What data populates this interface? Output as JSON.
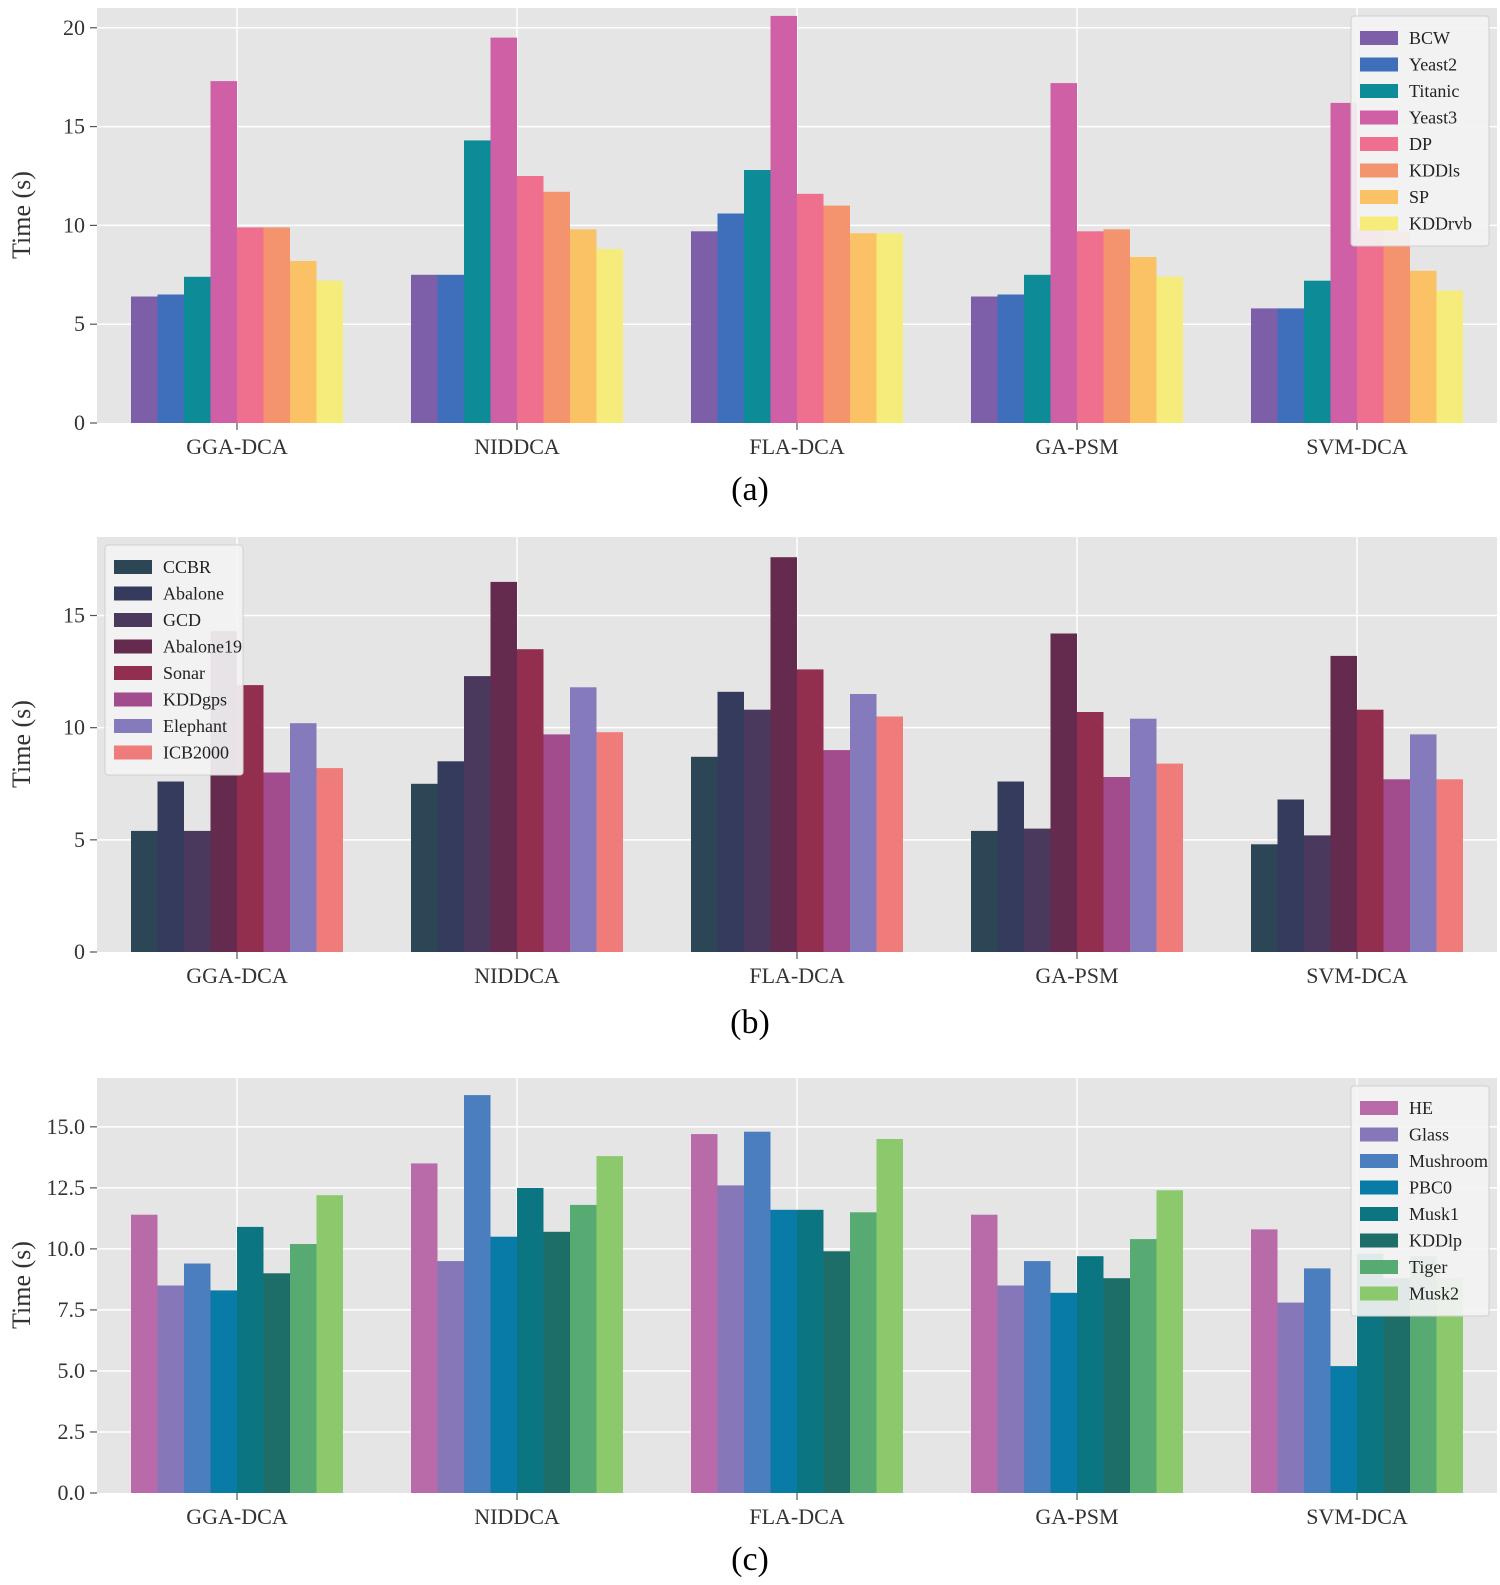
{
  "chart_data": [
    {
      "type": "bar",
      "caption": "(a)",
      "ylabel": "Time (s)",
      "ylim": [
        0,
        21
      ],
      "yticks": [
        0,
        5,
        10,
        15,
        20
      ],
      "ytick_labels": [
        "0",
        "5",
        "10",
        "15",
        "20"
      ],
      "legend_position": "top-right",
      "grid": true,
      "categories": [
        "GGA-DCA",
        "NIDDCA",
        "FLA-DCA",
        "GA-PSM",
        "SVM-DCA"
      ],
      "series": [
        {
          "name": "BCW",
          "color": "#7d5ea8",
          "values": [
            6.4,
            7.5,
            9.7,
            6.4,
            5.8
          ]
        },
        {
          "name": "Yeast2",
          "color": "#3f6fba",
          "values": [
            6.5,
            7.5,
            10.6,
            6.5,
            5.8
          ]
        },
        {
          "name": "Titanic",
          "color": "#0d8c98",
          "values": [
            7.4,
            14.3,
            12.8,
            7.5,
            7.2
          ]
        },
        {
          "name": "Yeast3",
          "color": "#d060a6",
          "values": [
            17.3,
            19.5,
            20.6,
            17.2,
            16.2
          ]
        },
        {
          "name": "DP",
          "color": "#ef6f8f",
          "values": [
            9.9,
            12.5,
            11.6,
            9.7,
            9.8
          ]
        },
        {
          "name": "KDDls",
          "color": "#f4946e",
          "values": [
            9.9,
            11.7,
            11.0,
            9.8,
            9.7
          ]
        },
        {
          "name": "SP",
          "color": "#fbc265",
          "values": [
            8.2,
            9.8,
            9.6,
            8.4,
            7.7
          ]
        },
        {
          "name": "KDDrvb",
          "color": "#f6ec7b",
          "values": [
            7.2,
            8.8,
            9.6,
            7.4,
            6.7
          ]
        }
      ]
    },
    {
      "type": "bar",
      "caption": "(b)",
      "ylabel": "Time (s)",
      "ylim": [
        0,
        18.5
      ],
      "yticks": [
        0,
        5,
        10,
        15
      ],
      "ytick_labels": [
        "0",
        "5",
        "10",
        "15"
      ],
      "legend_position": "top-left",
      "grid": true,
      "categories": [
        "GGA-DCA",
        "NIDDCA",
        "FLA-DCA",
        "GA-PSM",
        "SVM-DCA"
      ],
      "series": [
        {
          "name": "CCBR",
          "color": "#2d4656",
          "values": [
            5.4,
            7.5,
            8.7,
            5.4,
            4.8
          ]
        },
        {
          "name": "Abalone",
          "color": "#353b5d",
          "values": [
            7.6,
            8.5,
            11.6,
            7.6,
            6.8
          ]
        },
        {
          "name": "GCD",
          "color": "#4b385d",
          "values": [
            5.4,
            12.3,
            10.8,
            5.5,
            5.2
          ]
        },
        {
          "name": "Abalone19",
          "color": "#642b4e",
          "values": [
            14.3,
            16.5,
            17.6,
            14.2,
            13.2
          ]
        },
        {
          "name": "Sonar",
          "color": "#922e4e",
          "values": [
            11.9,
            13.5,
            12.6,
            10.7,
            10.8
          ]
        },
        {
          "name": "KDDgps",
          "color": "#a24b8d",
          "values": [
            8.0,
            9.7,
            9.0,
            7.8,
            7.7
          ]
        },
        {
          "name": "Elephant",
          "color": "#847abc",
          "values": [
            10.2,
            11.8,
            11.5,
            10.4,
            9.7
          ]
        },
        {
          "name": "ICB2000",
          "color": "#f07b7b",
          "values": [
            8.2,
            9.8,
            10.5,
            8.4,
            7.7
          ]
        }
      ]
    },
    {
      "type": "bar",
      "caption": "(c)",
      "ylabel": "Time (s)",
      "ylim": [
        0,
        17.0
      ],
      "yticks": [
        0,
        2.5,
        5.0,
        7.5,
        10.0,
        12.5,
        15.0
      ],
      "ytick_labels": [
        "0.0",
        "2.5",
        "5.0",
        "7.5",
        "10.0",
        "12.5",
        "15.0"
      ],
      "legend_position": "top-right",
      "grid": true,
      "categories": [
        "GGA-DCA",
        "NIDDCA",
        "FLA-DCA",
        "GA-PSM",
        "SVM-DCA"
      ],
      "series": [
        {
          "name": "HE",
          "color": "#b86aa9",
          "values": [
            11.4,
            13.5,
            14.7,
            11.4,
            10.8
          ]
        },
        {
          "name": "Glass",
          "color": "#8677b8",
          "values": [
            8.5,
            9.5,
            12.6,
            8.5,
            7.8
          ]
        },
        {
          "name": "Mushroom",
          "color": "#4b7ebe",
          "values": [
            9.4,
            16.3,
            14.8,
            9.5,
            9.2
          ]
        },
        {
          "name": "PBC0",
          "color": "#087ca6",
          "values": [
            8.3,
            10.5,
            11.6,
            8.2,
            5.2
          ]
        },
        {
          "name": "Musk1",
          "color": "#0b7682",
          "values": [
            10.9,
            12.5,
            11.6,
            9.7,
            9.8
          ]
        },
        {
          "name": "KDDlp",
          "color": "#1d6d68",
          "values": [
            9.0,
            10.7,
            9.9,
            8.8,
            8.8
          ]
        },
        {
          "name": "Tiger",
          "color": "#57ab72",
          "values": [
            10.2,
            11.8,
            11.5,
            10.4,
            9.7
          ]
        },
        {
          "name": "Musk2",
          "color": "#8bc96c",
          "values": [
            12.2,
            13.8,
            14.5,
            12.4,
            8.8
          ]
        }
      ]
    }
  ]
}
